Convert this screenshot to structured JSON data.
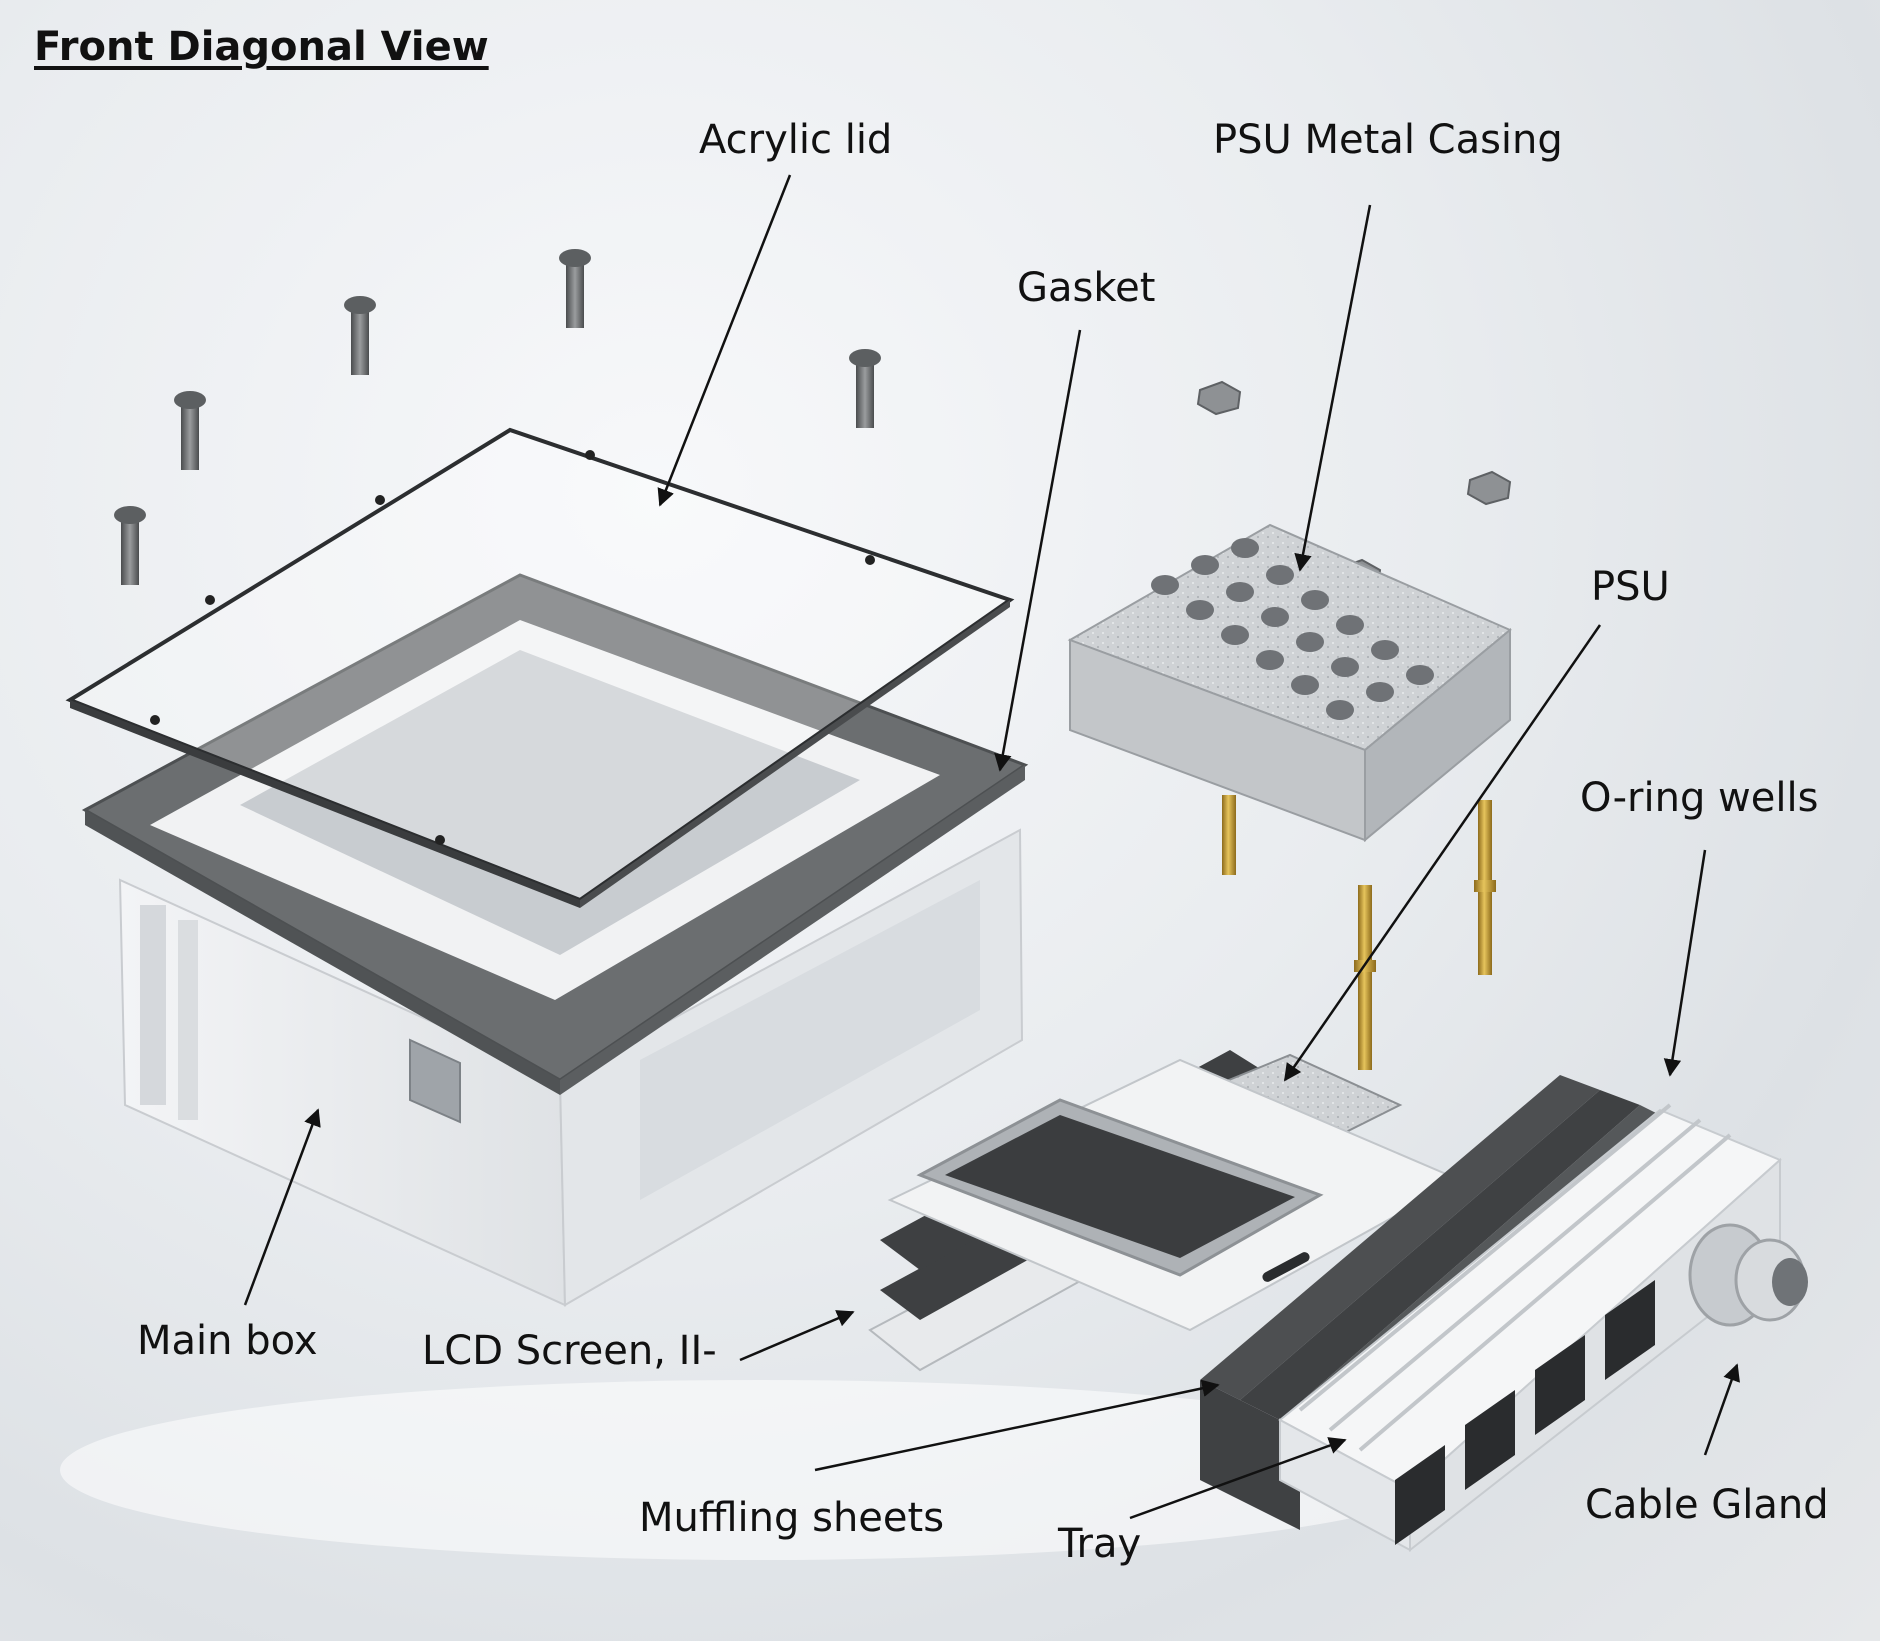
{
  "title": "Front Diagonal View",
  "labels": {
    "acrylic_lid": "Acrylic lid",
    "psu_metal_casing": "PSU Metal Casing",
    "gasket": "Gasket",
    "psu": "PSU",
    "o_ring_wells": "O-ring wells",
    "main_box": "Main box",
    "lcd_screen": "LCD Screen, II-",
    "muffling_sheets": "Muffling sheets",
    "tray": "Tray",
    "cable_gland": "Cable Gland"
  },
  "colors": {
    "gasket": "#6b6e70",
    "box": "#eceef0",
    "metal": "#c6c9cc",
    "brass": "#c9a23a",
    "red_connector": "#c0353a",
    "muffling": "#4d4f51",
    "lcd_screen": "#3b3d3f"
  }
}
